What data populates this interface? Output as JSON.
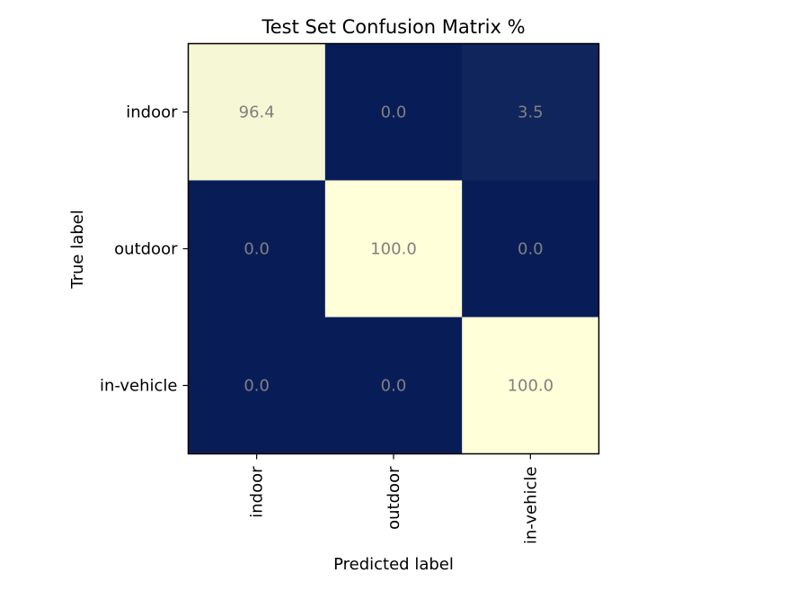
{
  "chart_data": {
    "type": "heatmap",
    "title": "Test Set Confusion Matrix %",
    "xlabel": "Predicted label",
    "ylabel": "True label",
    "x_categories": [
      "indoor",
      "outdoor",
      "in-vehicle"
    ],
    "y_categories": [
      "indoor",
      "outdoor",
      "in-vehicle"
    ],
    "values": [
      [
        96.4,
        0.0,
        3.5
      ],
      [
        0.0,
        100.0,
        0.0
      ],
      [
        0.0,
        0.0,
        100.0
      ]
    ],
    "value_labels": [
      [
        "96.4",
        "0.0",
        "3.5"
      ],
      [
        "0.0",
        "100.0",
        "0.0"
      ],
      [
        "0.0",
        "0.0",
        "100.0"
      ]
    ],
    "colormap": "YlGnBu_r",
    "color_low": "#081d58",
    "color_high": "#ffffd9",
    "zlim": [
      0,
      100
    ],
    "grid": false
  }
}
